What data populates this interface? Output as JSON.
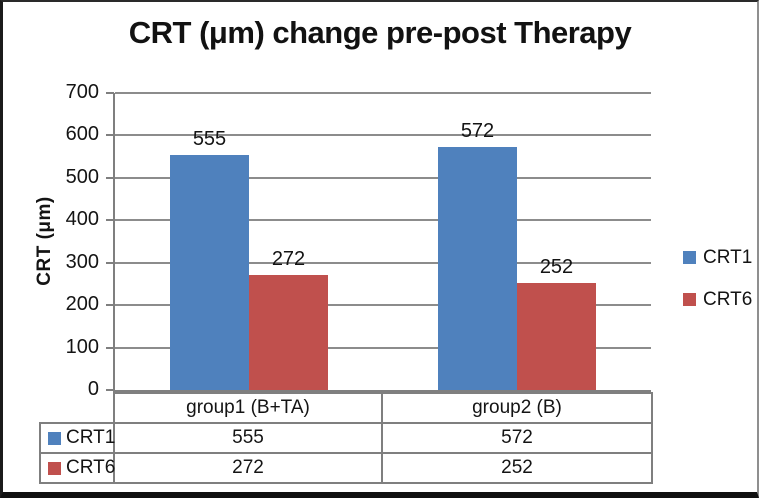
{
  "chart_data": {
    "type": "bar",
    "title": "CRT (μm) change pre-post Therapy",
    "ylabel": "CRT (μm)",
    "xlabel": "",
    "ylim": [
      0,
      700
    ],
    "yticks": [
      0,
      100,
      200,
      300,
      400,
      500,
      600,
      700
    ],
    "categories": [
      "group1 (B+TA)",
      "group2 (B)"
    ],
    "series": [
      {
        "name": "CRT1",
        "color": "#4F81BD",
        "values": [
          555,
          572
        ]
      },
      {
        "name": "CRT6",
        "color": "#C0504D",
        "values": [
          272,
          252
        ]
      }
    ],
    "grid": true,
    "legend_position": "right",
    "data_labels": true,
    "data_table_shown": true,
    "gridline_color": "#8c8c8c",
    "axis_color": "#7f7f7f",
    "text_color": "#141414"
  }
}
